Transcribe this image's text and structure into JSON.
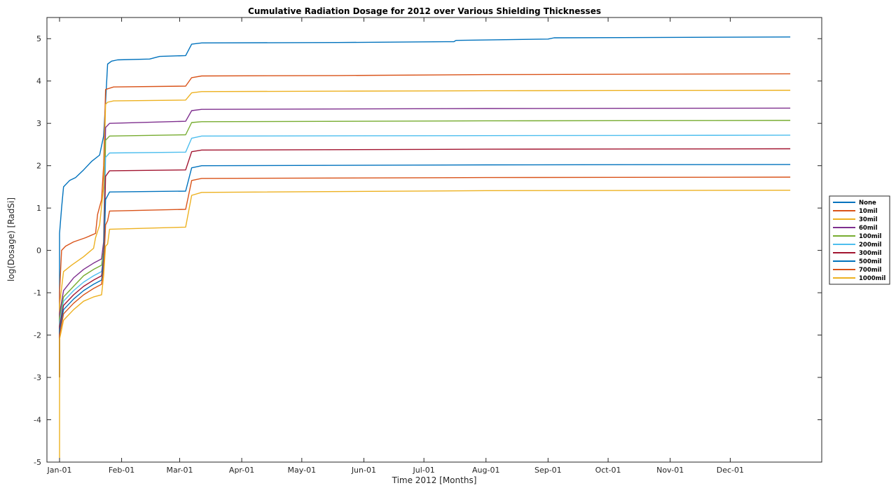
{
  "chart_data": {
    "type": "line",
    "title": "Cumulative Radiation Dosage for 2012 over Various Shielding Thicknesses",
    "xlabel": "Time 2012 [Months]",
    "ylabel": "log(Dosage) [RadSi]",
    "x_scale": "time",
    "xlim": [
      "2012-01-01",
      "2012-12-31"
    ],
    "ylim": [
      -5,
      5.5
    ],
    "yticks": [
      -5,
      -4,
      -3,
      -2,
      -1,
      0,
      1,
      2,
      3,
      4,
      5
    ],
    "xtick_labels": [
      "Jan-01",
      "Feb-01",
      "Mar-01",
      "Apr-01",
      "May-01",
      "Jun-01",
      "Jul-01",
      "Aug-01",
      "Sep-01",
      "Oct-01",
      "Nov-01",
      "Dec-01"
    ],
    "xtick_dates": [
      "2012-01-01",
      "2012-02-01",
      "2012-03-01",
      "2012-04-01",
      "2012-05-01",
      "2012-06-01",
      "2012-07-01",
      "2012-08-01",
      "2012-09-01",
      "2012-10-01",
      "2012-11-01",
      "2012-12-01"
    ],
    "grid": false,
    "legend_position": "outside-right",
    "series": [
      {
        "name": "None",
        "color": "#0072BD",
        "points": [
          [
            "2012-01-01",
            -3.0
          ],
          [
            "2012-01-01",
            0.4
          ],
          [
            "2012-01-02",
            1.0
          ],
          [
            "2012-01-03",
            1.5
          ],
          [
            "2012-01-06",
            1.65
          ],
          [
            "2012-01-09",
            1.72
          ],
          [
            "2012-01-13",
            1.9
          ],
          [
            "2012-01-17",
            2.1
          ],
          [
            "2012-01-21",
            2.25
          ],
          [
            "2012-01-23",
            2.7
          ],
          [
            "2012-01-24",
            3.5
          ],
          [
            "2012-01-25",
            4.4
          ],
          [
            "2012-01-27",
            4.47
          ],
          [
            "2012-01-30",
            4.5
          ],
          [
            "2012-02-15",
            4.52
          ],
          [
            "2012-02-20",
            4.58
          ],
          [
            "2012-03-04",
            4.6
          ],
          [
            "2012-03-07",
            4.87
          ],
          [
            "2012-03-12",
            4.9
          ],
          [
            "2012-05-19",
            4.91
          ],
          [
            "2012-07-16",
            4.93
          ],
          [
            "2012-07-17",
            4.96
          ],
          [
            "2012-09-01",
            4.99
          ],
          [
            "2012-09-04",
            5.02
          ],
          [
            "2012-12-31",
            5.04
          ]
        ]
      },
      {
        "name": "10mil",
        "color": "#D95319",
        "points": [
          [
            "2012-01-01",
            -2.8
          ],
          [
            "2012-01-01",
            -1.0
          ],
          [
            "2012-01-02",
            0.0
          ],
          [
            "2012-01-04",
            0.1
          ],
          [
            "2012-01-08",
            0.2
          ],
          [
            "2012-01-14",
            0.3
          ],
          [
            "2012-01-19",
            0.4
          ],
          [
            "2012-01-20",
            0.85
          ],
          [
            "2012-01-22",
            1.2
          ],
          [
            "2012-01-23",
            2.0
          ],
          [
            "2012-01-24",
            3.8
          ],
          [
            "2012-01-28",
            3.86
          ],
          [
            "2012-03-04",
            3.88
          ],
          [
            "2012-03-07",
            4.08
          ],
          [
            "2012-03-12",
            4.12
          ],
          [
            "2012-05-19",
            4.13
          ],
          [
            "2012-08-01",
            4.15
          ],
          [
            "2012-12-31",
            4.17
          ]
        ]
      },
      {
        "name": "30mil",
        "color": "#EDB120",
        "points": [
          [
            "2012-01-01",
            -3.0
          ],
          [
            "2012-01-01",
            -1.3
          ],
          [
            "2012-01-03",
            -0.5
          ],
          [
            "2012-01-07",
            -0.35
          ],
          [
            "2012-01-13",
            -0.15
          ],
          [
            "2012-01-18",
            0.05
          ],
          [
            "2012-01-19",
            0.3
          ],
          [
            "2012-01-21",
            0.6
          ],
          [
            "2012-01-23",
            1.5
          ],
          [
            "2012-01-24",
            3.45
          ],
          [
            "2012-01-25",
            3.5
          ],
          [
            "2012-01-28",
            3.53
          ],
          [
            "2012-03-04",
            3.55
          ],
          [
            "2012-03-07",
            3.72
          ],
          [
            "2012-03-12",
            3.75
          ],
          [
            "2012-05-19",
            3.76
          ],
          [
            "2012-08-01",
            3.77
          ],
          [
            "2012-12-31",
            3.78
          ]
        ]
      },
      {
        "name": "60mil",
        "color": "#7E2F8E",
        "points": [
          [
            "2012-01-01",
            -3.0
          ],
          [
            "2012-01-01",
            -1.5
          ],
          [
            "2012-01-03",
            -0.95
          ],
          [
            "2012-01-08",
            -0.65
          ],
          [
            "2012-01-13",
            -0.45
          ],
          [
            "2012-01-18",
            -0.3
          ],
          [
            "2012-01-22",
            -0.2
          ],
          [
            "2012-01-23",
            0.2
          ],
          [
            "2012-01-24",
            2.9
          ],
          [
            "2012-01-26",
            3.0
          ],
          [
            "2012-03-04",
            3.05
          ],
          [
            "2012-03-07",
            3.3
          ],
          [
            "2012-03-12",
            3.33
          ],
          [
            "2012-08-01",
            3.35
          ],
          [
            "2012-12-31",
            3.36
          ]
        ]
      },
      {
        "name": "100mil",
        "color": "#77AC30",
        "points": [
          [
            "2012-01-01",
            -3.0
          ],
          [
            "2012-01-01",
            -1.6
          ],
          [
            "2012-01-03",
            -1.1
          ],
          [
            "2012-01-08",
            -0.85
          ],
          [
            "2012-01-13",
            -0.6
          ],
          [
            "2012-01-18",
            -0.45
          ],
          [
            "2012-01-22",
            -0.35
          ],
          [
            "2012-01-23",
            0.0
          ],
          [
            "2012-01-24",
            2.6
          ],
          [
            "2012-01-26",
            2.7
          ],
          [
            "2012-03-04",
            2.73
          ],
          [
            "2012-03-07",
            3.02
          ],
          [
            "2012-03-12",
            3.04
          ],
          [
            "2012-08-01",
            3.06
          ],
          [
            "2012-12-31",
            3.07
          ]
        ]
      },
      {
        "name": "200mil",
        "color": "#4DBEEE",
        "points": [
          [
            "2012-01-01",
            -3.0
          ],
          [
            "2012-01-01",
            -1.7
          ],
          [
            "2012-01-03",
            -1.2
          ],
          [
            "2012-01-08",
            -0.95
          ],
          [
            "2012-01-13",
            -0.75
          ],
          [
            "2012-01-18",
            -0.6
          ],
          [
            "2012-01-22",
            -0.5
          ],
          [
            "2012-01-23",
            -0.1
          ],
          [
            "2012-01-24",
            2.2
          ],
          [
            "2012-01-26",
            2.3
          ],
          [
            "2012-03-04",
            2.32
          ],
          [
            "2012-03-07",
            2.65
          ],
          [
            "2012-03-12",
            2.7
          ],
          [
            "2012-08-01",
            2.71
          ],
          [
            "2012-12-31",
            2.72
          ]
        ]
      },
      {
        "name": "300mil",
        "color": "#A2142F",
        "points": [
          [
            "2012-01-01",
            -3.0
          ],
          [
            "2012-01-01",
            -1.8
          ],
          [
            "2012-01-03",
            -1.3
          ],
          [
            "2012-01-08",
            -1.05
          ],
          [
            "2012-01-13",
            -0.85
          ],
          [
            "2012-01-18",
            -0.7
          ],
          [
            "2012-01-22",
            -0.6
          ],
          [
            "2012-01-23",
            -0.2
          ],
          [
            "2012-01-24",
            1.75
          ],
          [
            "2012-01-26",
            1.88
          ],
          [
            "2012-03-04",
            1.9
          ],
          [
            "2012-03-07",
            2.33
          ],
          [
            "2012-03-12",
            2.37
          ],
          [
            "2012-08-01",
            2.39
          ],
          [
            "2012-12-31",
            2.4
          ]
        ]
      },
      {
        "name": "500mil",
        "color": "#0072BD",
        "points": [
          [
            "2012-01-01",
            -3.0
          ],
          [
            "2012-01-01",
            -1.9
          ],
          [
            "2012-01-03",
            -1.4
          ],
          [
            "2012-01-08",
            -1.15
          ],
          [
            "2012-01-13",
            -0.95
          ],
          [
            "2012-01-18",
            -0.8
          ],
          [
            "2012-01-22",
            -0.7
          ],
          [
            "2012-01-23",
            -0.3
          ],
          [
            "2012-01-24",
            1.2
          ],
          [
            "2012-01-26",
            1.38
          ],
          [
            "2012-03-04",
            1.4
          ],
          [
            "2012-03-07",
            1.95
          ],
          [
            "2012-03-12",
            2.0
          ],
          [
            "2012-08-01",
            2.02
          ],
          [
            "2012-12-31",
            2.03
          ]
        ]
      },
      {
        "name": "700mil",
        "color": "#D95319",
        "points": [
          [
            "2012-01-01",
            -3.0
          ],
          [
            "2012-01-01",
            -2.0
          ],
          [
            "2012-01-03",
            -1.5
          ],
          [
            "2012-01-08",
            -1.25
          ],
          [
            "2012-01-13",
            -1.05
          ],
          [
            "2012-01-18",
            -0.9
          ],
          [
            "2012-01-22",
            -0.8
          ],
          [
            "2012-01-23",
            -0.45
          ],
          [
            "2012-01-24",
            0.6
          ],
          [
            "2012-01-25",
            0.7
          ],
          [
            "2012-01-26",
            0.93
          ],
          [
            "2012-03-04",
            0.97
          ],
          [
            "2012-03-07",
            1.65
          ],
          [
            "2012-03-12",
            1.7
          ],
          [
            "2012-08-01",
            1.72
          ],
          [
            "2012-12-31",
            1.73
          ]
        ]
      },
      {
        "name": "1000mil",
        "color": "#EDB120",
        "points": [
          [
            "2012-01-01",
            -4.9
          ],
          [
            "2012-01-01",
            -2.1
          ],
          [
            "2012-01-03",
            -1.65
          ],
          [
            "2012-01-08",
            -1.4
          ],
          [
            "2012-01-13",
            -1.2
          ],
          [
            "2012-01-18",
            -1.1
          ],
          [
            "2012-01-22",
            -1.05
          ],
          [
            "2012-01-23",
            -0.6
          ],
          [
            "2012-01-24",
            0.1
          ],
          [
            "2012-01-25",
            0.15
          ],
          [
            "2012-01-26",
            0.5
          ],
          [
            "2012-03-04",
            0.55
          ],
          [
            "2012-03-07",
            1.3
          ],
          [
            "2012-03-12",
            1.37
          ],
          [
            "2012-08-01",
            1.41
          ],
          [
            "2012-12-31",
            1.42
          ]
        ]
      }
    ]
  }
}
